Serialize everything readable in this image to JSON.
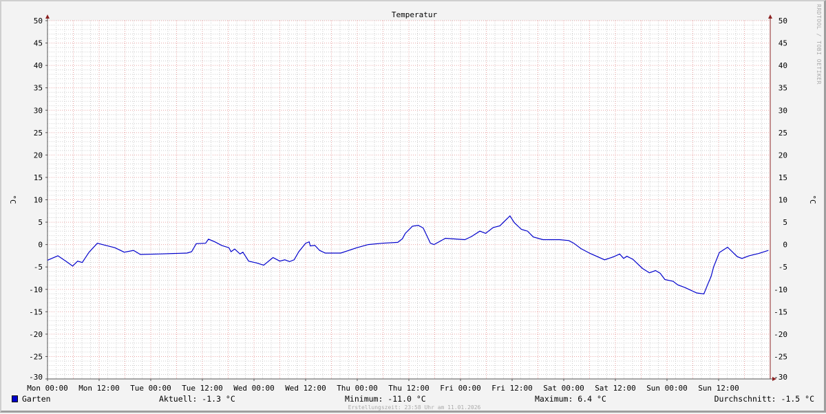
{
  "watermark": "RRDTOOL / TOBI OETIKER",
  "footer": "Erstellungszeit: 23:58 Uhr am 11.01.2026",
  "legend": {
    "series_name": "Garten",
    "series_color": "#0000cc",
    "current": "Aktuell: -1.3 °C",
    "minimum": "Minimum: -11.0 °C",
    "maximum": "Maximum: 6.4 °C",
    "average": "Durchschnitt: -1.5 °C"
  },
  "chart_data": {
    "type": "line",
    "title": "Temperatur",
    "ylabel": "°C",
    "ylabel_right": "°C",
    "ylim": [
      -30,
      50
    ],
    "yticks": [
      50,
      45,
      40,
      35,
      30,
      25,
      20,
      15,
      10,
      5,
      0,
      -5,
      -10,
      -15,
      -20,
      -25,
      -30
    ],
    "xlim": [
      "Mon 00:00",
      "Mon 00:00 +7d"
    ],
    "xticks": [
      "Mon 00:00",
      "Mon 12:00",
      "Tue 00:00",
      "Tue 12:00",
      "Wed 00:00",
      "Wed 12:00",
      "Thu 00:00",
      "Thu 12:00",
      "Fri 00:00",
      "Fri 12:00",
      "Sat 00:00",
      "Sat 12:00",
      "Sun 00:00",
      "Sun 12:00"
    ],
    "grid": true,
    "grid_colors": {
      "major": "#e8a0a0",
      "minor": "#cccccc"
    },
    "line_color": "#0000cc",
    "series": [
      {
        "name": "Garten",
        "points": [
          [
            "Mon 00:00",
            -3.5
          ],
          [
            "Mon 02:25",
            -2.5
          ],
          [
            "Mon 04:15",
            -3.7
          ],
          [
            "Mon 05:50",
            -4.8
          ],
          [
            "Mon 07:00",
            -3.7
          ],
          [
            "Mon 08:05",
            -4.0
          ],
          [
            "Mon 09:40",
            -1.7
          ],
          [
            "Mon 11:35",
            0.3
          ],
          [
            "Mon 14:00",
            -0.3
          ],
          [
            "Mon 15:40",
            -0.7
          ],
          [
            "Mon 17:50",
            -1.7
          ],
          [
            "Mon 20:00",
            -1.3
          ],
          [
            "Mon 21:35",
            -2.2
          ],
          [
            "Tue 01:55",
            -2.1
          ],
          [
            "Tue 08:25",
            -1.9
          ],
          [
            "Tue 09:30",
            -1.6
          ],
          [
            "Tue 10:35",
            0.2
          ],
          [
            "Tue 12:45",
            0.3
          ],
          [
            "Tue 13:25",
            1.2
          ],
          [
            "Tue 14:55",
            0.6
          ],
          [
            "Tue 16:30",
            -0.2
          ],
          [
            "Tue 18:10",
            -0.7
          ],
          [
            "Tue 18:40",
            -1.6
          ],
          [
            "Tue 19:30",
            -1.0
          ],
          [
            "Tue 20:45",
            -2.1
          ],
          [
            "Tue 21:25",
            -1.7
          ],
          [
            "Tue 22:45",
            -3.7
          ],
          [
            "Wed 00:35",
            -4.1
          ],
          [
            "Wed 02:15",
            -4.6
          ],
          [
            "Wed 04:25",
            -2.9
          ],
          [
            "Wed 06:00",
            -3.7
          ],
          [
            "Wed 07:10",
            -3.4
          ],
          [
            "Wed 08:15",
            -3.8
          ],
          [
            "Wed 09:20",
            -3.4
          ],
          [
            "Wed 10:25",
            -1.6
          ],
          [
            "Wed 12:00",
            0.3
          ],
          [
            "Wed 12:50",
            0.6
          ],
          [
            "Wed 13:05",
            -0.3
          ],
          [
            "Wed 14:10",
            -0.2
          ],
          [
            "Wed 15:15",
            -1.3
          ],
          [
            "Wed 16:35",
            -1.9
          ],
          [
            "Wed 20:10",
            -1.9
          ],
          [
            "Wed 23:55",
            -0.7
          ],
          [
            "Thu 02:35",
            0.0
          ],
          [
            "Thu 05:50",
            0.3
          ],
          [
            "Thu 09:25",
            0.5
          ],
          [
            "Thu 10:30",
            1.3
          ],
          [
            "Thu 11:10",
            2.5
          ],
          [
            "Thu 12:50",
            4.1
          ],
          [
            "Thu 14:10",
            4.3
          ],
          [
            "Thu 15:20",
            3.7
          ],
          [
            "Thu 17:00",
            0.3
          ],
          [
            "Thu 17:50",
            0.0
          ],
          [
            "Thu 20:30",
            1.4
          ],
          [
            "Fri 01:00",
            1.1
          ],
          [
            "Fri 02:35",
            1.8
          ],
          [
            "Fri 04:30",
            3.0
          ],
          [
            "Fri 05:50",
            2.5
          ],
          [
            "Fri 07:35",
            3.8
          ],
          [
            "Fri 09:10",
            4.2
          ],
          [
            "Fri 10:20",
            5.3
          ],
          [
            "Fri 11:30",
            6.4
          ],
          [
            "Fri 12:30",
            4.9
          ],
          [
            "Fri 14:10",
            3.4
          ],
          [
            "Fri 15:35",
            3.0
          ],
          [
            "Fri 16:55",
            1.7
          ],
          [
            "Fri 19:10",
            1.1
          ],
          [
            "Fri 23:00",
            1.1
          ],
          [
            "Sat 01:10",
            0.9
          ],
          [
            "Sat 02:20",
            0.3
          ],
          [
            "Sat 04:00",
            -0.9
          ],
          [
            "Sat 06:10",
            -2.0
          ],
          [
            "Sat 09:30",
            -3.4
          ],
          [
            "Sat 11:40",
            -2.7
          ],
          [
            "Sat 13:00",
            -2.1
          ],
          [
            "Sat 13:55",
            -3.1
          ],
          [
            "Sat 14:40",
            -2.6
          ],
          [
            "Sat 16:05",
            -3.3
          ],
          [
            "Sat 18:15",
            -5.3
          ],
          [
            "Sat 19:55",
            -6.3
          ],
          [
            "Sat 21:20",
            -5.8
          ],
          [
            "Sat 22:25",
            -6.4
          ],
          [
            "Sat 23:30",
            -7.8
          ],
          [
            "Sun 01:25",
            -8.2
          ],
          [
            "Sun 02:30",
            -9.0
          ],
          [
            "Sun 04:10",
            -9.6
          ],
          [
            "Sun 06:55",
            -10.8
          ],
          [
            "Sun 08:35",
            -11.0
          ],
          [
            "Sun 09:25",
            -9.0
          ],
          [
            "Sun 10:15",
            -7.1
          ],
          [
            "Sun 10:50",
            -5.0
          ],
          [
            "Sun 12:10",
            -1.8
          ],
          [
            "Sun 14:05",
            -0.6
          ],
          [
            "Sun 16:20",
            -2.7
          ],
          [
            "Sun 17:25",
            -3.1
          ],
          [
            "Sun 19:05",
            -2.5
          ],
          [
            "Sun 21:20",
            -2.0
          ],
          [
            "Sun 23:35",
            -1.3
          ]
        ]
      }
    ]
  }
}
